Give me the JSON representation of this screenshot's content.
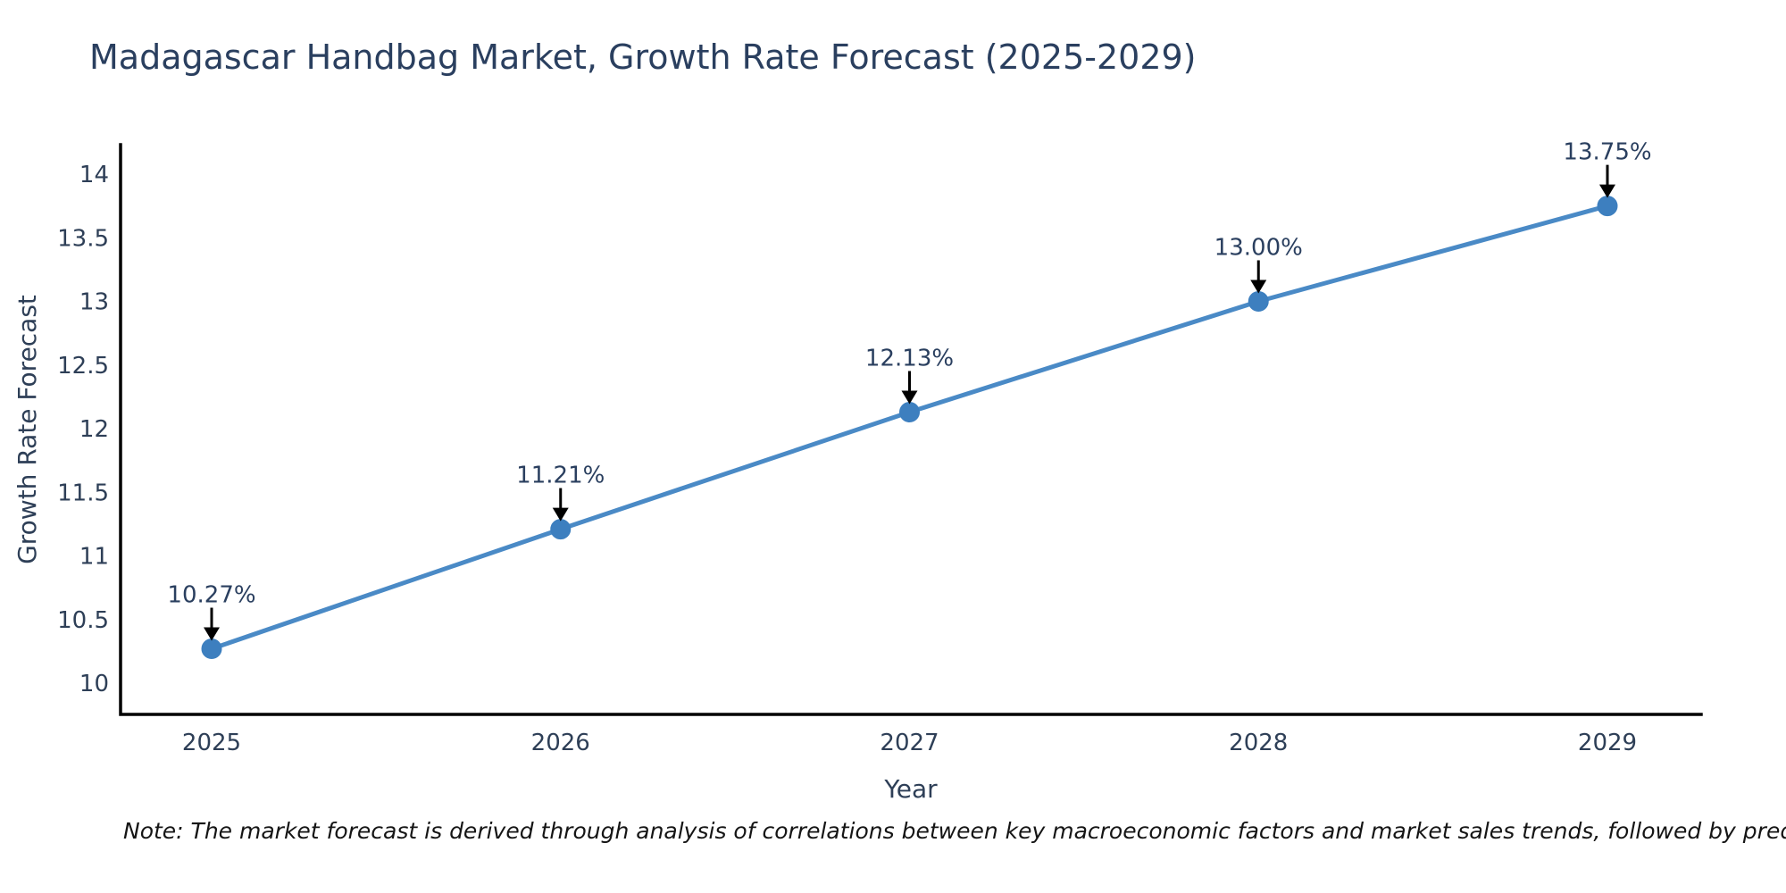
{
  "chart_data": {
    "type": "line",
    "title": "Madagascar Handbag Market, Growth Rate Forecast (2025-2029)",
    "xlabel": "Year",
    "ylabel": "Growth Rate Forecast",
    "categories": [
      "2025",
      "2026",
      "2027",
      "2028",
      "2029"
    ],
    "x": [
      2025,
      2026,
      2027,
      2028,
      2029
    ],
    "values": [
      10.27,
      11.21,
      12.13,
      13.0,
      13.75
    ],
    "point_labels": [
      "10.27%",
      "11.21%",
      "12.13%",
      "13.00%",
      "13.75%"
    ],
    "yticks": [
      "10",
      "10.5",
      "11",
      "11.5",
      "12",
      "12.5",
      "13",
      "13.5",
      "14"
    ],
    "ytick_values": [
      10,
      10.5,
      11,
      11.5,
      12,
      12.5,
      13,
      13.5,
      14
    ],
    "ylim": [
      9.75,
      14.23
    ],
    "grid": false,
    "legend_position": "none",
    "annotation_style": "value-with-down-arrow",
    "colors": {
      "line": "#4a8ac6",
      "marker": "#3d7fbf",
      "axis": "#000000",
      "text": "#2a3f5f",
      "arrow": "#000000"
    }
  },
  "note": {
    "text": "Note: The market forecast is derived through analysis of correlations between key macroeconomic factors and market sales trends, followed by predictive modeling to project future sales."
  }
}
